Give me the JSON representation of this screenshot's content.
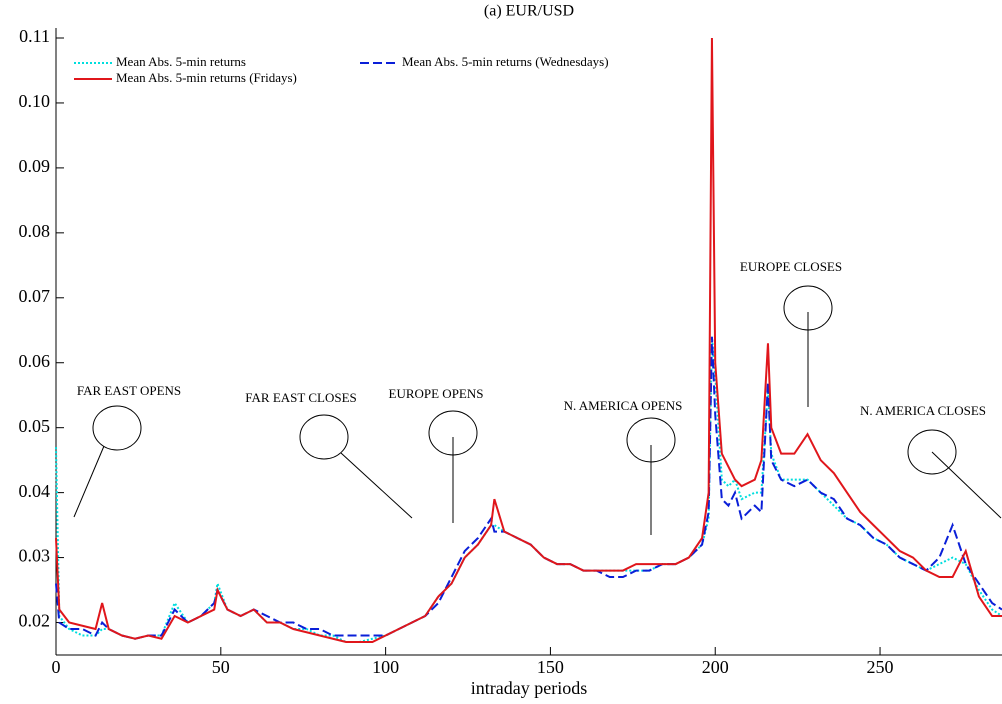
{
  "chart_data": {
    "type": "line",
    "title": "(a) EUR/USD",
    "x_label": "intraday periods",
    "x": [
      0,
      1,
      4,
      8,
      12,
      14,
      16,
      20,
      24,
      28,
      32,
      36,
      40,
      44,
      48,
      49,
      52,
      56,
      60,
      64,
      68,
      72,
      76,
      80,
      84,
      88,
      92,
      96,
      100,
      104,
      108,
      112,
      116,
      120,
      124,
      128,
      132,
      133,
      136,
      140,
      144,
      148,
      152,
      156,
      160,
      164,
      168,
      172,
      176,
      180,
      184,
      188,
      192,
      196,
      198,
      199,
      200,
      202,
      204,
      206,
      208,
      212,
      214,
      216,
      217,
      220,
      224,
      228,
      232,
      236,
      240,
      244,
      248,
      252,
      256,
      260,
      264,
      268,
      272,
      276,
      280,
      284,
      287
    ],
    "series": [
      {
        "name": "Mean Abs. 5-min returns",
        "color": "#00dede",
        "dash": "dotted",
        "values": [
          0.047,
          0.021,
          0.019,
          0.018,
          0.018,
          0.019,
          0.019,
          0.018,
          0.0175,
          0.018,
          0.018,
          0.023,
          0.02,
          0.021,
          0.023,
          0.026,
          0.022,
          0.021,
          0.022,
          0.02,
          0.02,
          0.019,
          0.019,
          0.018,
          0.018,
          0.017,
          0.017,
          0.0175,
          0.018,
          0.019,
          0.02,
          0.021,
          0.024,
          0.026,
          0.03,
          0.032,
          0.035,
          0.035,
          0.034,
          0.033,
          0.032,
          0.03,
          0.029,
          0.029,
          0.028,
          0.028,
          0.028,
          0.028,
          0.028,
          0.028,
          0.029,
          0.029,
          0.03,
          0.032,
          0.036,
          0.064,
          0.058,
          0.042,
          0.041,
          0.042,
          0.039,
          0.04,
          0.04,
          0.056,
          0.046,
          0.042,
          0.042,
          0.042,
          0.04,
          0.038,
          0.036,
          0.035,
          0.033,
          0.032,
          0.03,
          0.029,
          0.028,
          0.029,
          0.03,
          0.029,
          0.025,
          0.022,
          0.021
        ]
      },
      {
        "name": "Mean Abs. 5-min returns (Wednesdays)",
        "color": "#0a1fd8",
        "dash": "dashed",
        "values": [
          0.026,
          0.02,
          0.019,
          0.019,
          0.018,
          0.02,
          0.019,
          0.018,
          0.0175,
          0.018,
          0.018,
          0.022,
          0.02,
          0.021,
          0.023,
          0.025,
          0.022,
          0.021,
          0.022,
          0.021,
          0.02,
          0.02,
          0.019,
          0.019,
          0.018,
          0.018,
          0.018,
          0.018,
          0.018,
          0.019,
          0.02,
          0.021,
          0.023,
          0.027,
          0.031,
          0.033,
          0.036,
          0.034,
          0.034,
          0.033,
          0.032,
          0.03,
          0.029,
          0.029,
          0.028,
          0.028,
          0.027,
          0.027,
          0.028,
          0.028,
          0.029,
          0.029,
          0.03,
          0.032,
          0.037,
          0.064,
          0.052,
          0.039,
          0.038,
          0.04,
          0.036,
          0.038,
          0.037,
          0.057,
          0.045,
          0.042,
          0.041,
          0.042,
          0.04,
          0.039,
          0.036,
          0.035,
          0.033,
          0.032,
          0.03,
          0.029,
          0.028,
          0.03,
          0.035,
          0.029,
          0.026,
          0.023,
          0.022
        ]
      },
      {
        "name": "Mean Abs. 5-min returns (Fridays)",
        "color": "#e0161b",
        "dash": "solid",
        "values": [
          0.033,
          0.022,
          0.02,
          0.0195,
          0.019,
          0.023,
          0.019,
          0.018,
          0.0175,
          0.018,
          0.0175,
          0.021,
          0.02,
          0.021,
          0.022,
          0.025,
          0.022,
          0.021,
          0.022,
          0.02,
          0.02,
          0.019,
          0.0185,
          0.018,
          0.0175,
          0.017,
          0.017,
          0.017,
          0.018,
          0.019,
          0.02,
          0.021,
          0.024,
          0.026,
          0.03,
          0.032,
          0.035,
          0.039,
          0.034,
          0.033,
          0.032,
          0.03,
          0.029,
          0.029,
          0.028,
          0.028,
          0.028,
          0.028,
          0.029,
          0.029,
          0.029,
          0.029,
          0.03,
          0.033,
          0.04,
          0.11,
          0.06,
          0.046,
          0.044,
          0.042,
          0.041,
          0.042,
          0.045,
          0.063,
          0.05,
          0.046,
          0.046,
          0.049,
          0.045,
          0.043,
          0.04,
          0.037,
          0.035,
          0.033,
          0.031,
          0.03,
          0.028,
          0.027,
          0.027,
          0.031,
          0.024,
          0.021,
          0.021
        ]
      }
    ],
    "xlim": [
      0,
      287
    ],
    "ylim": [
      0.015,
      0.11
    ],
    "xticks": [
      0,
      50,
      100,
      150,
      200,
      250
    ],
    "yticks": [
      0.02,
      0.03,
      0.04,
      0.05,
      0.06,
      0.07,
      0.08,
      0.09,
      {
        "value": 0.1,
        "label": "0.10"
      },
      0.11
    ],
    "annotations": [
      "FAR EAST OPENS",
      "FAR EAST CLOSES",
      "EUROPE OPENS",
      "N. AMERICA OPENS",
      "EUROPE CLOSES",
      "N. AMERICA CLOSES"
    ]
  }
}
